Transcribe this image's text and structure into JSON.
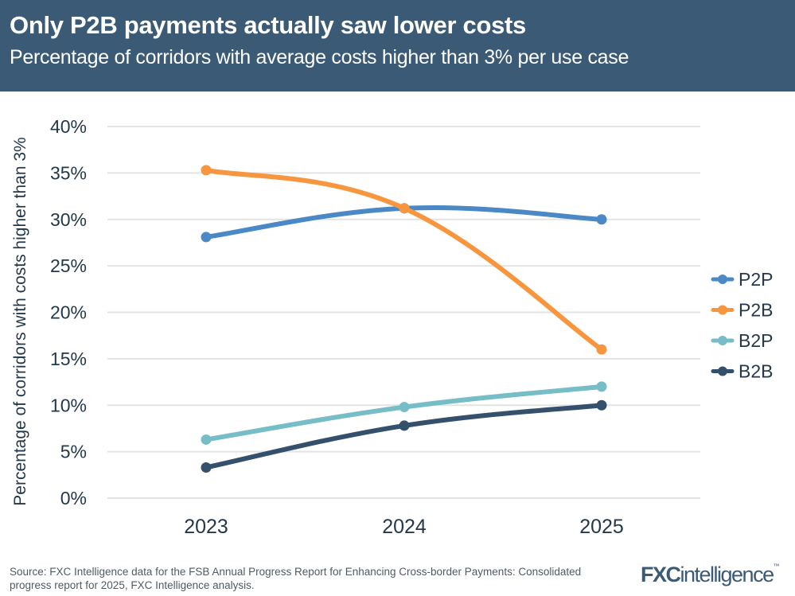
{
  "header": {
    "title": "Only P2B payments actually saw lower costs",
    "subtitle": "Percentage of corridors with average costs higher than 3% per use case"
  },
  "chart_data": {
    "type": "line",
    "title": "Only P2B payments actually saw lower costs",
    "subtitle": "Percentage of corridors with average costs higher than 3% per use case",
    "xlabel": "",
    "ylabel": "Percentage of corridors with costs higher than 3%",
    "categories": [
      "2023",
      "2024",
      "2025"
    ],
    "ylim": [
      0,
      40
    ],
    "yticks": [
      0,
      5,
      10,
      15,
      20,
      25,
      30,
      35,
      40
    ],
    "ytick_labels": [
      "0%",
      "5%",
      "10%",
      "15%",
      "20%",
      "25%",
      "30%",
      "35%",
      "40%"
    ],
    "grid": true,
    "legend_position": "right",
    "smooth": true,
    "series": [
      {
        "name": "P2P",
        "color": "#4a89c5",
        "values": [
          28.1,
          31.2,
          30.0
        ]
      },
      {
        "name": "P2B",
        "color": "#f7963e",
        "values": [
          35.3,
          31.2,
          16.0
        ]
      },
      {
        "name": "B2P",
        "color": "#76bdc8",
        "values": [
          6.3,
          9.8,
          12.0
        ]
      },
      {
        "name": "B2B",
        "color": "#35506d",
        "values": [
          3.3,
          7.8,
          10.0
        ]
      }
    ]
  },
  "footer": {
    "source": "Source: FXC Intelligence data for the FSB Annual Progress Report for Enhancing Cross-border Payments: Consolidated progress report for 2025, FXC Intelligence analysis."
  },
  "logo": {
    "bold": "FXC",
    "thin": "intelligence",
    "tm": "™"
  }
}
